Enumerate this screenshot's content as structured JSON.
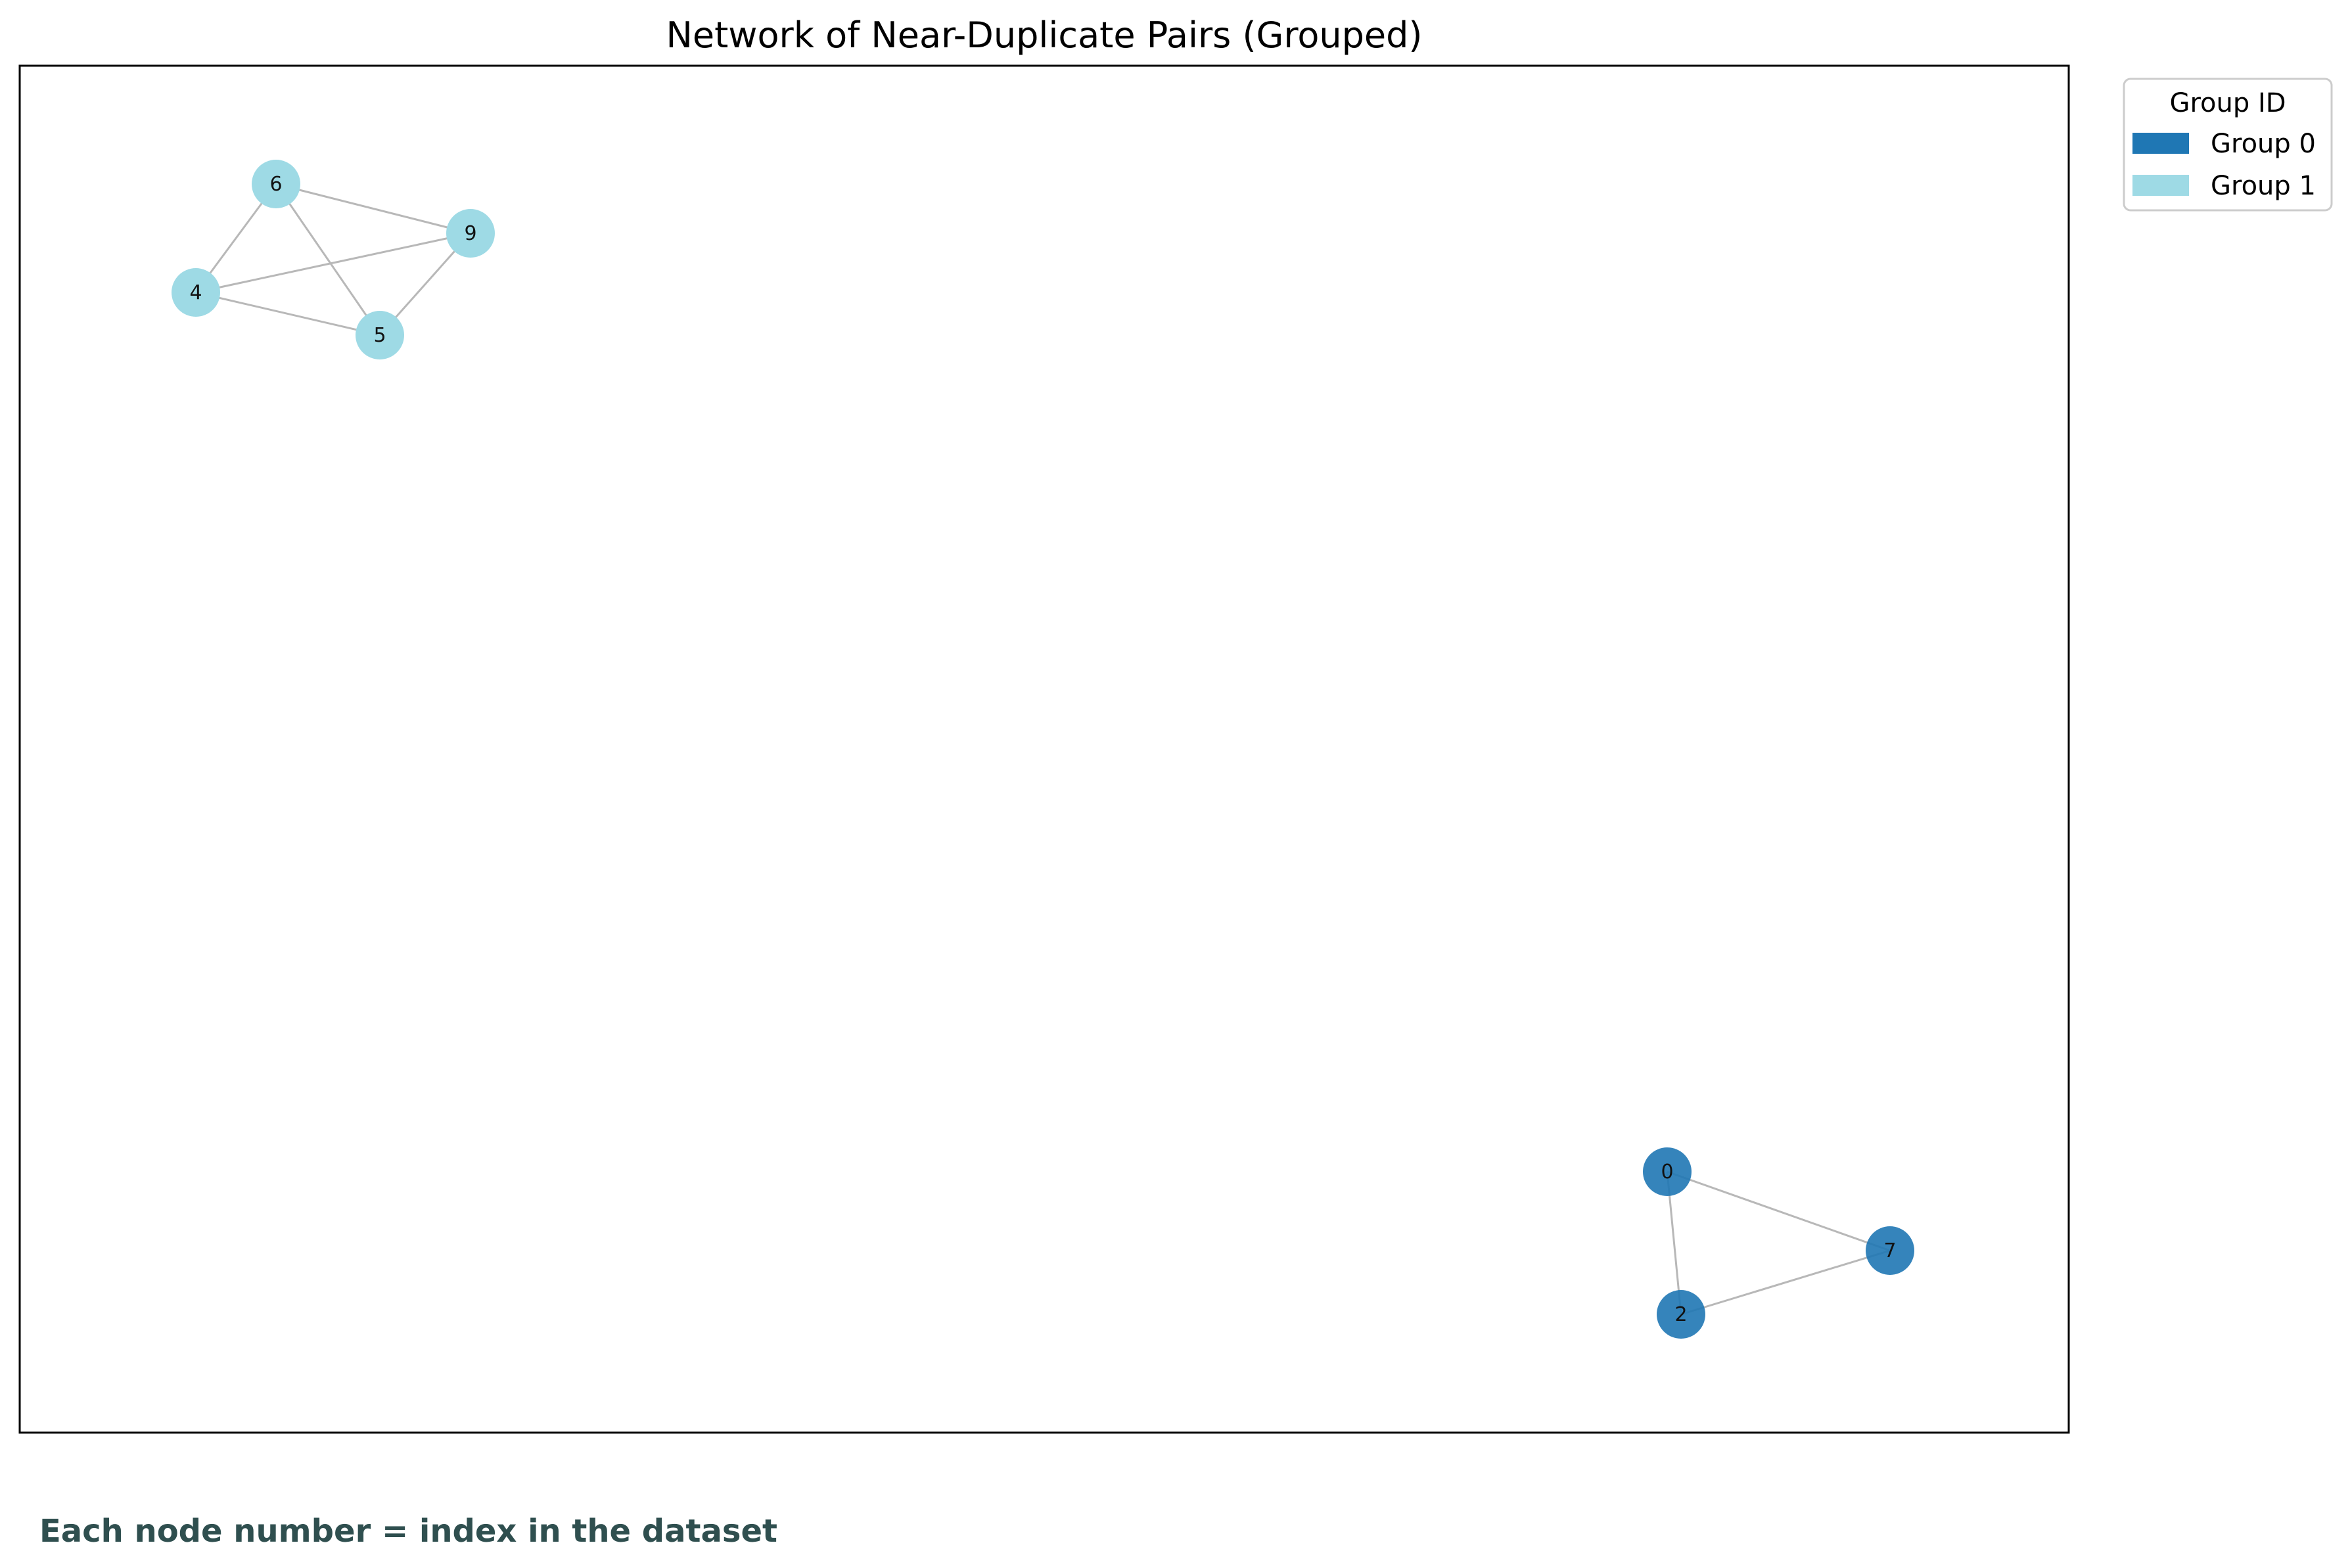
{
  "title": "Network of Near-Duplicate Pairs (Grouped)",
  "caption": "Each node number = index in the dataset",
  "legend": {
    "title": "Group ID",
    "items": [
      {
        "label": "Group 0",
        "color": "#1f77b4"
      },
      {
        "label": "Group 1",
        "color": "#9edae5"
      }
    ]
  },
  "colors": {
    "edge": "#b8b8b8",
    "frame": "#000000",
    "group_0": "#1f77b4",
    "group_1": "#9edae5"
  },
  "nodes": [
    {
      "id": "6",
      "group": 1
    },
    {
      "id": "9",
      "group": 1
    },
    {
      "id": "4",
      "group": 1
    },
    {
      "id": "5",
      "group": 1
    },
    {
      "id": "0",
      "group": 0
    },
    {
      "id": "7",
      "group": 0
    },
    {
      "id": "2",
      "group": 0
    }
  ],
  "edges": [
    [
      "6",
      "9"
    ],
    [
      "6",
      "4"
    ],
    [
      "6",
      "5"
    ],
    [
      "4",
      "9"
    ],
    [
      "4",
      "5"
    ],
    [
      "5",
      "9"
    ],
    [
      "0",
      "7"
    ],
    [
      "0",
      "2"
    ],
    [
      "2",
      "7"
    ]
  ]
}
